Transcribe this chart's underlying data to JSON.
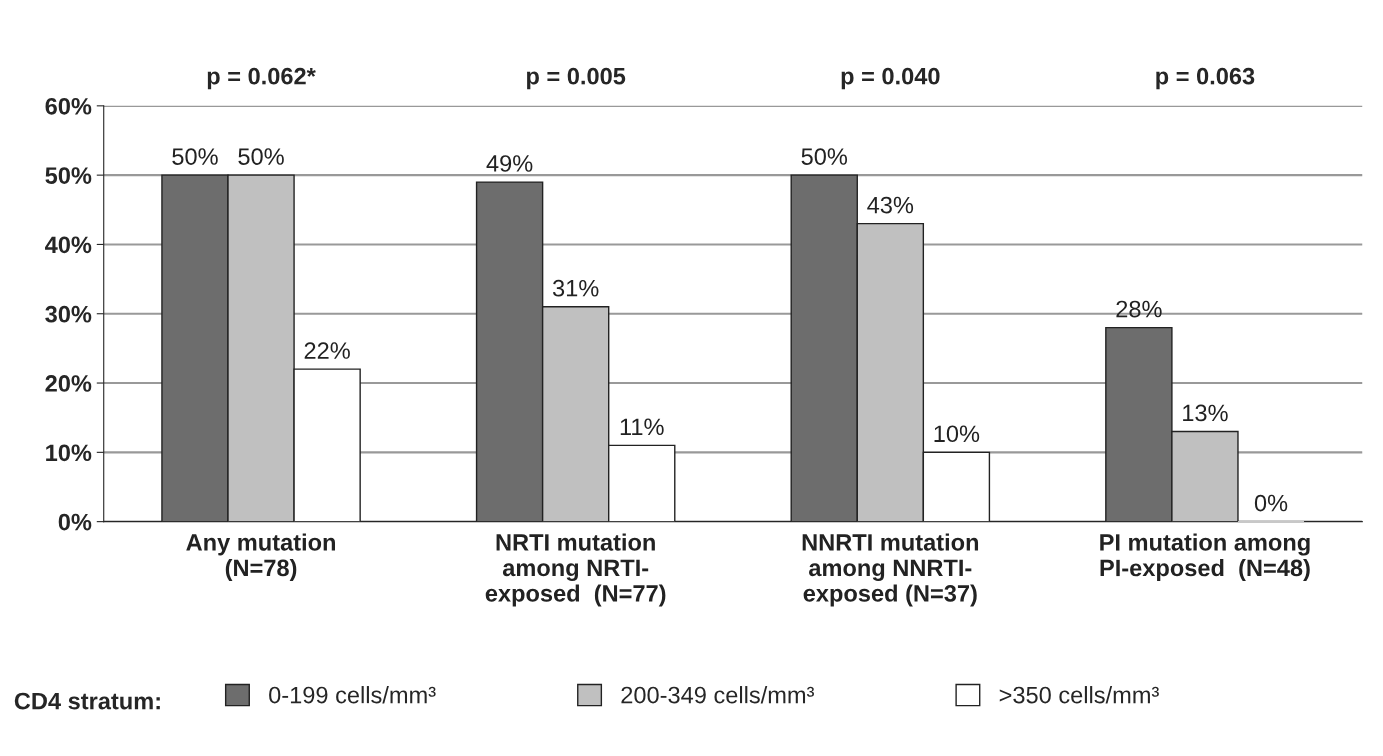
{
  "chart_data": {
    "type": "bar",
    "categories": [
      "Any mutation\n(N=78)",
      "NRTI mutation\namong NRTI-\nexposed  (N=77)",
      "NNRTI mutation\namong NNRTI-\nexposed (N=37)",
      "PI mutation among\nPI-exposed  (N=48)"
    ],
    "series": [
      {
        "name": "0-199 cells/mm³",
        "color": "#6d6d6d",
        "values": [
          50,
          49,
          50,
          28
        ],
        "value_labels": [
          "50%",
          "49%",
          "50%",
          "28%"
        ]
      },
      {
        "name": "200-349 cells/mm³",
        "color": "#c0c0c0",
        "values": [
          50,
          31,
          43,
          13
        ],
        "value_labels": [
          "50%",
          "31%",
          "43%",
          "13%"
        ]
      },
      {
        "name": ">350 cells/mm³",
        "color": "#ffffff",
        "values": [
          22,
          11,
          10,
          0
        ],
        "value_labels": [
          "22%",
          "11%",
          "10%",
          "0%"
        ]
      }
    ],
    "ylim": [
      0,
      60
    ],
    "yticks": [
      {
        "value": 0,
        "label": "0%"
      },
      {
        "value": 10,
        "label": "10%"
      },
      {
        "value": 20,
        "label": "20%"
      },
      {
        "value": 30,
        "label": "30%"
      },
      {
        "value": 40,
        "label": "40%"
      },
      {
        "value": 50,
        "label": "50%"
      },
      {
        "value": 60,
        "label": "60%"
      }
    ],
    "grid": "y",
    "legend": "bottom",
    "legend_title": "CD4 stratum:",
    "annotations": [
      "p = 0.062*",
      "p = 0.005",
      "p = 0.040",
      "p = 0.063"
    ]
  }
}
